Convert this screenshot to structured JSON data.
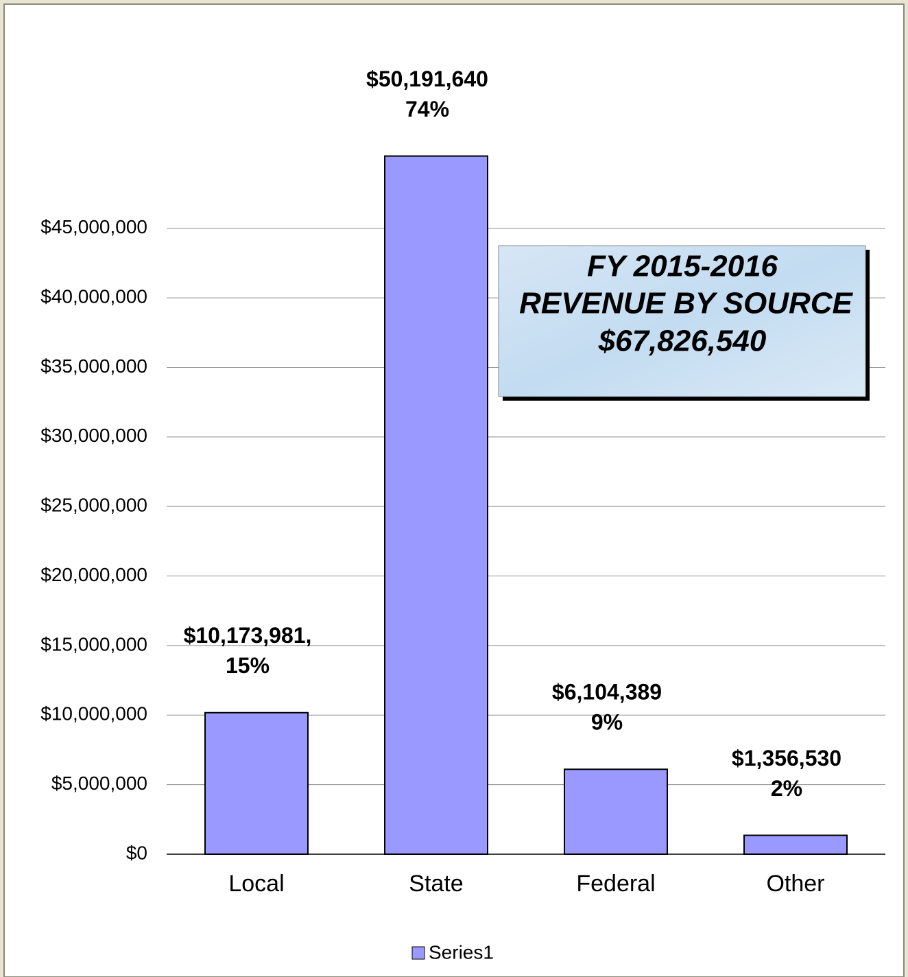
{
  "chart_data": {
    "type": "bar",
    "categories": [
      "Local",
      "State",
      "Federal",
      "Other"
    ],
    "series": [
      {
        "name": "Series1",
        "color": "#9999ff",
        "values": [
          10173981,
          50191640,
          6104389,
          1356530
        ],
        "value_labels": [
          "$10,173,981,",
          "$50,191,640",
          "$6,104,389",
          "$1,356,530"
        ],
        "percent_values": [
          15,
          74,
          9,
          2
        ],
        "percent_labels": [
          "15%",
          "74%",
          "9%",
          "2%"
        ]
      }
    ],
    "ylim": [
      0,
      55000000
    ],
    "yticks": [
      {
        "value": 0,
        "label": "$0"
      },
      {
        "value": 5000000,
        "label": "$5,000,000"
      },
      {
        "value": 10000000,
        "label": "$10,000,000"
      },
      {
        "value": 15000000,
        "label": "$15,000,000"
      },
      {
        "value": 20000000,
        "label": "$20,000,000"
      },
      {
        "value": 25000000,
        "label": "$25,000,000"
      },
      {
        "value": 30000000,
        "label": "$30,000,000"
      },
      {
        "value": 35000000,
        "label": "$35,000,000"
      },
      {
        "value": 40000000,
        "label": "$40,000,000"
      },
      {
        "value": 45000000,
        "label": "$45,000,000"
      }
    ],
    "grid": true,
    "legend": "bottom",
    "annotation": [
      "FY 2015-2016",
      "REVENUE  BY SOURCE",
      "$67,826,540"
    ]
  }
}
